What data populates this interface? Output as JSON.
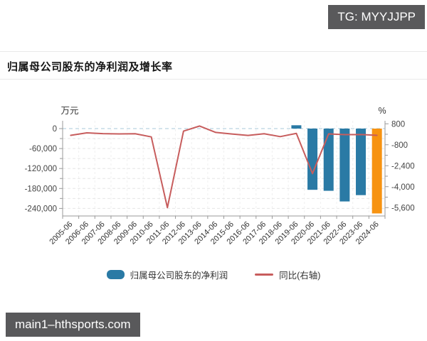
{
  "watermarks": {
    "top_right": "TG: MYYJJPP",
    "bottom_left": "main1–hthsports.com"
  },
  "title": "归属母公司股东的净利润及增长率",
  "chart_data": {
    "type": "bar",
    "subtype": "bar+line dual-axis combo",
    "categories": [
      "2005-06",
      "2006-06",
      "2007-06",
      "2008-06",
      "2009-06",
      "2010-06",
      "2011-06",
      "2012-06",
      "2013-06",
      "2014-06",
      "2015-06",
      "2016-06",
      "2017-06",
      "2018-06",
      "2019-06",
      "2020-06",
      "2021-06",
      "2022-06",
      "2023-06",
      "2024-06"
    ],
    "series": [
      {
        "name": "归属母公司股东的净利润",
        "type": "bar",
        "axis": "left",
        "unit": "万元",
        "color": "#2a7aa5",
        "last_bar_color": "#f79311",
        "values": [
          0,
          0,
          0,
          0,
          0,
          0,
          0,
          0,
          0,
          0,
          0,
          0,
          0,
          0,
          10000,
          -184000,
          -187000,
          -219000,
          -200000,
          -255000
        ]
      },
      {
        "name": "同比(右轴)",
        "type": "line",
        "axis": "right",
        "unit": "%",
        "color": "#c75d5d",
        "values": [
          -80,
          110,
          50,
          30,
          40,
          -200,
          -5600,
          240,
          630,
          140,
          20,
          -90,
          40,
          -180,
          70,
          -3000,
          30,
          -30,
          -20,
          -80
        ]
      }
    ],
    "left_axis": {
      "title": "万元",
      "minor_interval": 30000,
      "ticks": [
        {
          "v": 0,
          "label": "0"
        },
        {
          "v": -60000,
          "label": "-60,000"
        },
        {
          "v": -120000,
          "label": "-120,000"
        },
        {
          "v": -180000,
          "label": "-180,000"
        },
        {
          "v": -240000,
          "label": "-240,000"
        }
      ]
    },
    "right_axis": {
      "title": "%",
      "minor_interval": 800,
      "ticks": [
        {
          "v": 800,
          "label": "800"
        },
        {
          "v": -800,
          "label": "-800"
        },
        {
          "v": -2400,
          "label": "-2,400"
        },
        {
          "v": -4000,
          "label": "-4,000"
        },
        {
          "v": -5600,
          "label": "-5,600"
        }
      ]
    },
    "legend_position": "bottom",
    "grid": true,
    "colors": {
      "bar": "#2a7aa5",
      "bar_highlight": "#f79311",
      "line": "#c75d5d",
      "zero_line": "#a9c8d8",
      "grid_line": "#e6e6e6",
      "axis_line": "#999999",
      "tick_text": "#444444"
    }
  }
}
